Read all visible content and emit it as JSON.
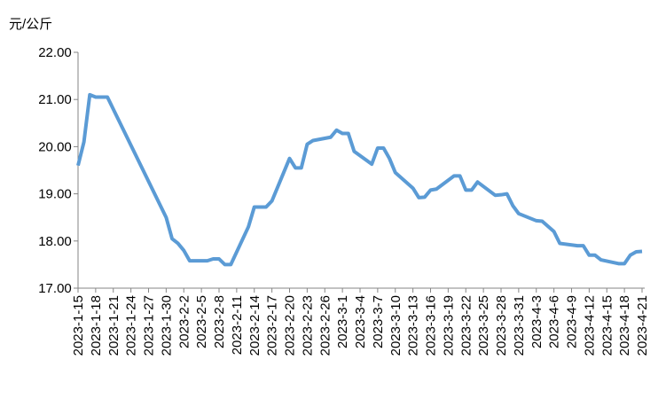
{
  "chart_data": {
    "type": "line",
    "y_label": "元/公斤",
    "x": [
      "2023-1-15",
      "2023-1-16",
      "2023-1-17",
      "2023-1-18",
      "2023-1-19",
      "2023-1-20",
      "2023-1-30",
      "2023-1-31",
      "2023-2-1",
      "2023-2-2",
      "2023-2-3",
      "2023-2-6",
      "2023-2-7",
      "2023-2-8",
      "2023-2-9",
      "2023-2-10",
      "2023-2-13",
      "2023-2-14",
      "2023-2-15",
      "2023-2-16",
      "2023-2-17",
      "2023-2-20",
      "2023-2-21",
      "2023-2-22",
      "2023-2-23",
      "2023-2-24",
      "2023-2-27",
      "2023-2-28",
      "2023-3-1",
      "2023-3-2",
      "2023-3-3",
      "2023-3-6",
      "2023-3-7",
      "2023-3-8",
      "2023-3-9",
      "2023-3-10",
      "2023-3-13",
      "2023-3-14",
      "2023-3-15",
      "2023-3-16",
      "2023-3-17",
      "2023-3-20",
      "2023-3-21",
      "2023-3-22",
      "2023-3-23",
      "2023-3-24",
      "2023-3-27",
      "2023-3-28",
      "2023-3-29",
      "2023-3-30",
      "2023-3-31",
      "2023-4-3",
      "2023-4-4",
      "2023-4-6",
      "2023-4-7",
      "2023-4-10",
      "2023-4-11",
      "2023-4-12",
      "2023-4-13",
      "2023-4-14",
      "2023-4-17",
      "2023-4-18",
      "2023-4-19",
      "2023-4-20",
      "2023-4-21"
    ],
    "series": [
      {
        "color": "#5b9bd5",
        "values": [
          19.6,
          20.1,
          21.1,
          21.05,
          21.05,
          21.05,
          18.5,
          18.05,
          17.95,
          17.8,
          17.58,
          17.58,
          17.62,
          17.62,
          17.5,
          17.5,
          18.3,
          18.72,
          18.72,
          18.72,
          18.85,
          19.75,
          19.55,
          19.55,
          20.05,
          20.13,
          20.2,
          20.35,
          20.28,
          20.28,
          19.9,
          19.63,
          19.97,
          19.97,
          19.75,
          19.45,
          19.12,
          18.92,
          18.93,
          19.08,
          19.1,
          19.38,
          19.38,
          19.08,
          19.08,
          19.25,
          18.97,
          18.98,
          19.0,
          18.75,
          18.58,
          18.43,
          18.42,
          18.2,
          17.95,
          17.9,
          17.9,
          17.7,
          17.7,
          17.6,
          17.52,
          17.52,
          17.7,
          17.77,
          17.78
        ]
      }
    ],
    "xlim": [
      "2023-1-15",
      "2023-4-21"
    ],
    "xticks": [
      "2023-1-15",
      "2023-1-18",
      "2023-1-21",
      "2023-1-24",
      "2023-1-27",
      "2023-1-30",
      "2023-2-2",
      "2023-2-5",
      "2023-2-8",
      "2023-2-11",
      "2023-2-14",
      "2023-2-17",
      "2023-2-20",
      "2023-2-23",
      "2023-2-26",
      "2023-3-1",
      "2023-3-4",
      "2023-3-7",
      "2023-3-10",
      "2023-3-13",
      "2023-3-16",
      "2023-3-19",
      "2023-3-22",
      "2023-3-25",
      "2023-3-28",
      "2023-3-31",
      "2023-4-3",
      "2023-4-6",
      "2023-4-9",
      "2023-4-12",
      "2023-4-15",
      "2023-4-18",
      "2023-4-21"
    ],
    "ylim": [
      17,
      22
    ],
    "yticks": [
      {
        "value": 17,
        "label": "17.00"
      },
      {
        "value": 18,
        "label": "18.00"
      },
      {
        "value": 19,
        "label": "19.00"
      },
      {
        "value": 20,
        "label": "20.00"
      },
      {
        "value": 21,
        "label": "21.00"
      },
      {
        "value": 22,
        "label": "22.00"
      }
    ]
  }
}
